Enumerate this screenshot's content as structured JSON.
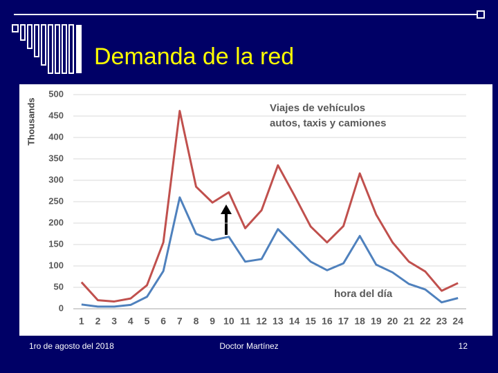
{
  "slide": {
    "title": "Demanda de la red",
    "footer_left": "1ro de agosto del 2018",
    "footer_center": "Doctor Martínez",
    "footer_right": "12"
  },
  "chart_data": {
    "type": "line",
    "y_label": "Thousands",
    "x_label": "hora del día",
    "annotation": [
      "Viajes de vehículos",
      "autos, taxis y camiones"
    ],
    "categories": [
      "1",
      "2",
      "3",
      "4",
      "5",
      "6",
      "7",
      "8",
      "9",
      "10",
      "11",
      "12",
      "13",
      "14",
      "15",
      "16",
      "17",
      "18",
      "19",
      "20",
      "21",
      "22",
      "23",
      "24"
    ],
    "series": [
      {
        "color": "#c0504d",
        "values": [
          62,
          20,
          17,
          24,
          55,
          155,
          462,
          285,
          248,
          272,
          188,
          230,
          335,
          265,
          192,
          155,
          193,
          316,
          220,
          155,
          110,
          87,
          42,
          60
        ]
      },
      {
        "color": "#4f81bd",
        "values": [
          10,
          5,
          5,
          9,
          28,
          88,
          260,
          175,
          160,
          168,
          110,
          116,
          186,
          148,
          110,
          90,
          106,
          170,
          103,
          85,
          58,
          45,
          15,
          25
        ]
      }
    ],
    "ylim": [
      0,
      500
    ],
    "yticks": [
      0,
      50,
      100,
      150,
      200,
      250,
      300,
      350,
      400,
      450,
      500
    ],
    "grid": true
  }
}
